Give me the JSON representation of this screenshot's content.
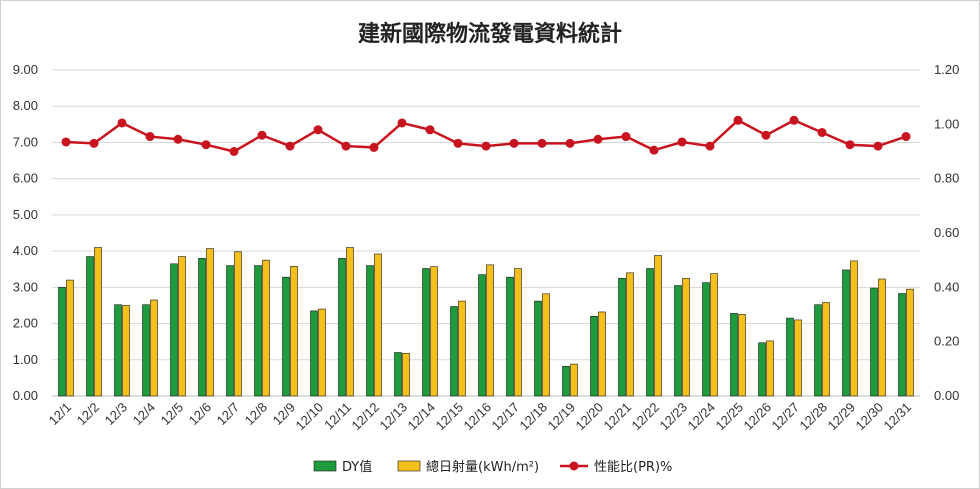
{
  "chart_data": {
    "type": "bar",
    "title": "建新國際物流發電資料統計",
    "categories": [
      "12/1",
      "12/2",
      "12/3",
      "12/4",
      "12/5",
      "12/6",
      "12/7",
      "12/8",
      "12/9",
      "12/10",
      "12/11",
      "12/12",
      "12/13",
      "12/14",
      "12/15",
      "12/16",
      "12/17",
      "12/18",
      "12/19",
      "12/20",
      "12/21",
      "12/22",
      "12/23",
      "12/24",
      "12/25",
      "12/26",
      "12/27",
      "12/28",
      "12/29",
      "12/30",
      "12/31"
    ],
    "left_axis": {
      "ylim": [
        0,
        9
      ],
      "ticks": [
        "0.00",
        "1.00",
        "2.00",
        "3.00",
        "4.00",
        "5.00",
        "6.00",
        "7.00",
        "8.00",
        "9.00"
      ]
    },
    "right_axis": {
      "ylim": [
        0,
        1.2
      ],
      "ticks": [
        "0.00",
        "0.20",
        "0.40",
        "0.60",
        "0.80",
        "1.00",
        "1.20"
      ]
    },
    "series": [
      {
        "name": "DY值",
        "type": "bar",
        "axis": "left",
        "color": "#1e9c3c",
        "values": [
          3.0,
          3.85,
          2.52,
          2.52,
          3.65,
          3.8,
          3.6,
          3.6,
          3.28,
          2.35,
          3.8,
          3.6,
          1.2,
          3.52,
          2.47,
          3.35,
          3.28,
          2.62,
          0.82,
          2.2,
          3.25,
          3.52,
          3.05,
          3.13,
          2.28,
          1.47,
          2.15,
          2.52,
          3.48,
          2.98,
          2.83
        ]
      },
      {
        "name": "總日射量(kWh/m²)",
        "type": "bar",
        "axis": "left",
        "color": "#f5c01c",
        "values": [
          3.2,
          4.1,
          2.5,
          2.65,
          3.85,
          4.07,
          3.98,
          3.75,
          3.58,
          2.4,
          4.1,
          3.92,
          1.18,
          3.57,
          2.62,
          3.62,
          3.52,
          2.82,
          0.88,
          2.32,
          3.4,
          3.88,
          3.25,
          3.38,
          2.25,
          1.52,
          2.1,
          2.58,
          3.73,
          3.23,
          2.95
        ]
      },
      {
        "name": "性能比(PR)%",
        "type": "line",
        "axis": "right",
        "color": "#c8141e",
        "values": [
          0.935,
          0.93,
          1.005,
          0.955,
          0.945,
          0.925,
          0.9,
          0.96,
          0.92,
          0.98,
          0.92,
          0.915,
          1.005,
          0.98,
          0.93,
          0.92,
          0.93,
          0.93,
          0.93,
          0.945,
          0.955,
          0.905,
          0.935,
          0.92,
          1.015,
          0.96,
          1.015,
          0.97,
          0.925,
          0.92,
          0.955
        ]
      }
    ],
    "grid": true,
    "legend": "bottom-center"
  }
}
